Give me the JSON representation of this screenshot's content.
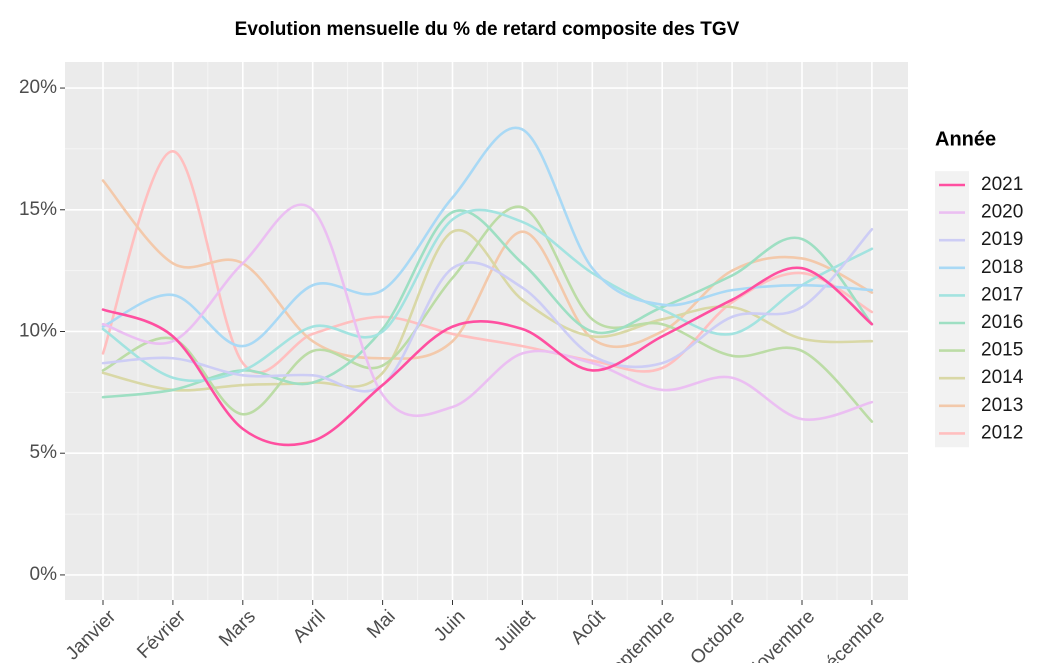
{
  "chart_data": {
    "type": "line",
    "title": "Evolution mensuelle du % de retard composite des TGV",
    "legend_title": "Année",
    "legend_position": "right",
    "grid": true,
    "smooth": true,
    "categories": [
      "Janvier",
      "Février",
      "Mars",
      "Avril",
      "Mai",
      "Juin",
      "Juillet",
      "Août",
      "Septembre",
      "Octobre",
      "Novembre",
      "Décembre"
    ],
    "ylim": [
      -1.03,
      21.07
    ],
    "yticks": [
      {
        "value": 0,
        "label": "0%"
      },
      {
        "value": 5,
        "label": "5%"
      },
      {
        "value": 10,
        "label": "10%"
      },
      {
        "value": 15,
        "label": "15%"
      },
      {
        "value": 20,
        "label": "20%"
      }
    ],
    "series": [
      {
        "name": "2021",
        "color": "#ff4fa0",
        "values": [
          10.9,
          9.8,
          6.0,
          5.5,
          7.8,
          10.2,
          10.1,
          8.4,
          9.8,
          11.3,
          12.6,
          10.3
        ]
      },
      {
        "name": "2020",
        "color": "#ebbff2",
        "values": [
          10.3,
          9.6,
          12.8,
          15.0,
          7.4,
          6.9,
          9.1,
          8.7,
          7.6,
          8.1,
          6.4,
          7.1
        ]
      },
      {
        "name": "2019",
        "color": "#cdcdf5",
        "values": [
          8.7,
          8.9,
          8.2,
          8.2,
          7.8,
          12.6,
          11.8,
          9.0,
          8.7,
          10.6,
          11.0,
          14.2
        ]
      },
      {
        "name": "2018",
        "color": "#a9d9f5",
        "values": [
          10.2,
          11.5,
          9.4,
          11.9,
          11.7,
          15.5,
          18.3,
          12.6,
          11.1,
          11.7,
          11.9,
          11.7
        ]
      },
      {
        "name": "2017",
        "color": "#a3e3e0",
        "values": [
          10.1,
          8.1,
          8.4,
          10.2,
          10.0,
          14.6,
          14.5,
          12.4,
          10.9,
          9.9,
          11.9,
          13.4
        ]
      },
      {
        "name": "2016",
        "color": "#9edfc3",
        "values": [
          7.3,
          7.6,
          8.4,
          7.9,
          10.1,
          14.9,
          12.8,
          10.0,
          11.0,
          12.3,
          13.8,
          10.3
        ]
      },
      {
        "name": "2015",
        "color": "#bcdca6",
        "values": [
          8.4,
          9.7,
          6.6,
          9.2,
          8.6,
          12.2,
          15.1,
          10.5,
          10.3,
          9.0,
          9.2,
          6.3
        ]
      },
      {
        "name": "2014",
        "color": "#d9d8a6",
        "values": [
          8.3,
          7.6,
          7.8,
          7.9,
          8.3,
          14.1,
          11.3,
          9.8,
          10.5,
          11.0,
          9.7,
          9.6
        ]
      },
      {
        "name": "2013",
        "color": "#f3c9ab",
        "values": [
          16.2,
          12.8,
          12.8,
          9.6,
          8.9,
          9.6,
          14.1,
          9.7,
          10.0,
          12.5,
          13.0,
          11.6
        ]
      },
      {
        "name": "2012",
        "color": "#ffbfbf",
        "values": [
          9.1,
          17.4,
          8.7,
          9.9,
          10.6,
          9.9,
          9.4,
          8.8,
          8.5,
          11.2,
          12.4,
          10.8
        ]
      }
    ]
  }
}
